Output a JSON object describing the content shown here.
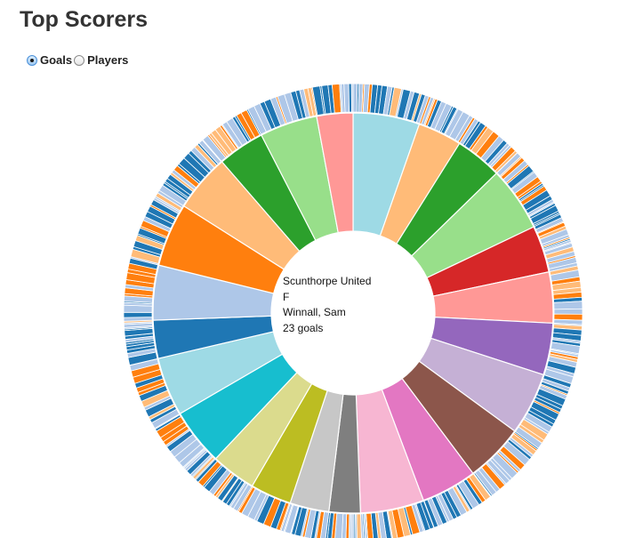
{
  "page": {
    "title": "Top Scorers"
  },
  "mode": {
    "options": [
      {
        "label": "Goals",
        "checked": true
      },
      {
        "label": "Players",
        "checked": false
      }
    ]
  },
  "center_label": {
    "team": "Scunthorpe United",
    "position": "F",
    "player": "Winnall, Sam",
    "goals_text": "23 goals"
  },
  "chart_data": {
    "type": "sunburst",
    "title": "Top Scorers",
    "metric": "goals",
    "palette": [
      "#9edae5",
      "#ffbb78",
      "#2ca02c",
      "#98df8a",
      "#d62728",
      "#ff9896",
      "#9467bd",
      "#c5b0d5",
      "#8c564b",
      "#e377c2",
      "#f7b6d2",
      "#7f7f7f",
      "#c7c7c7",
      "#bcbd22",
      "#dbdb8d",
      "#17becf",
      "#1f77b4",
      "#aec7e8",
      "#ff7f0e"
    ],
    "teams": [
      {
        "color": "#9edae5",
        "value": 68
      },
      {
        "color": "#ffbb78",
        "value": 45
      },
      {
        "color": "#2ca02c",
        "value": 48
      },
      {
        "color": "#98df8a",
        "value": 66
      },
      {
        "color": "#d62728",
        "value": 48
      },
      {
        "color": "#ff9896",
        "value": 52
      },
      {
        "color": "#9467bd",
        "value": 53
      },
      {
        "color": "#c5b0d5",
        "value": 64
      },
      {
        "color": "#8c564b",
        "value": 60
      },
      {
        "color": "#e377c2",
        "value": 57
      },
      {
        "color": "#f7b6d2",
        "value": 65
      },
      {
        "color": "#7f7f7f",
        "value": 32
      },
      {
        "color": "#c7c7c7",
        "value": 40
      },
      {
        "color": "#bcbd22",
        "value": 42
      },
      {
        "color": "#dbdb8d",
        "value": 46
      },
      {
        "color": "#17becf",
        "value": 58
      },
      {
        "color": "#9edae5",
        "value": 60
      },
      {
        "color": "#1f77b4",
        "value": 39
      },
      {
        "color": "#aec7e8",
        "value": 56
      },
      {
        "color": "#ff7f0e",
        "value": 65
      },
      {
        "color": "#ffbb78",
        "value": 59
      },
      {
        "color": "#2ca02c",
        "value": 48
      },
      {
        "color": "#98df8a",
        "value": 59
      },
      {
        "color": "#ff9896",
        "value": 37
      }
    ],
    "position_colors": {
      "F": "#1f77b4",
      "M": "#aec7e8",
      "D": "#ff7f0e",
      "G": "#ffbb78"
    }
  }
}
